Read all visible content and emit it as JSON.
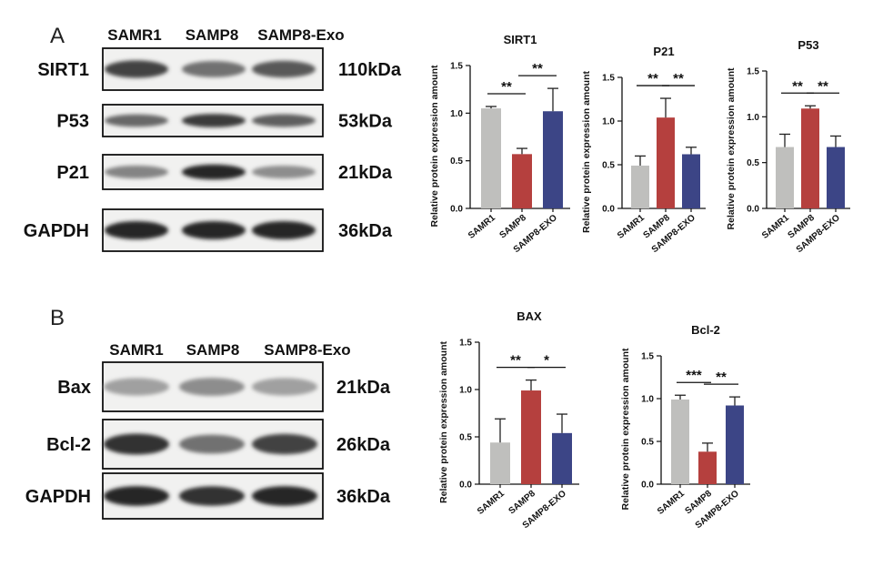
{
  "panels": [
    {
      "letter": "A",
      "blot": {
        "lanes": [
          "SAMR1",
          "SAMP8",
          "SAMP8-Exo"
        ],
        "rows": [
          {
            "label": "SIRT1",
            "kda": "110kDa",
            "intensity": [
              0.8,
              0.55,
              0.68
            ]
          },
          {
            "label": "P53",
            "kda": "53kDa",
            "intensity": [
              0.6,
              0.85,
              0.65
            ]
          },
          {
            "label": "P21",
            "kda": "21kDa",
            "intensity": [
              0.45,
              0.95,
              0.4
            ]
          },
          {
            "label": "GAPDH",
            "kda": "36kDa",
            "intensity": [
              0.95,
              0.95,
              0.95
            ]
          }
        ]
      }
    },
    {
      "letter": "B",
      "blot": {
        "lanes": [
          "SAMR1",
          "SAMP8",
          "SAMP8-Exo"
        ],
        "rows": [
          {
            "label": "Bax",
            "kda": "21kDa",
            "intensity": [
              0.3,
              0.4,
              0.3
            ]
          },
          {
            "label": "Bcl-2",
            "kda": "26kDa",
            "intensity": [
              0.9,
              0.55,
              0.8
            ]
          },
          {
            "label": "GAPDH",
            "kda": "36kDa",
            "intensity": [
              0.95,
              0.9,
              0.95
            ]
          }
        ]
      }
    }
  ],
  "colors": {
    "samr1": "#bfbfbd",
    "samp8": "#b5403e",
    "samp8_exo": "#3c4586"
  },
  "chart_data": [
    {
      "type": "bar",
      "title": "SIRT1",
      "categories": [
        "SAMR1",
        "SAMP8",
        "SAMP8-EXO"
      ],
      "values": [
        1.05,
        0.57,
        1.02
      ],
      "errors": [
        0.02,
        0.06,
        0.24
      ],
      "ylabel": "Relative protein expression amount",
      "ylim": [
        0,
        1.5
      ],
      "yticks": [
        "0.0",
        "0.5",
        "1.0",
        "1.5"
      ],
      "significance": [
        {
          "from": 0,
          "to": 1,
          "label": "**"
        },
        {
          "from": 1,
          "to": 2,
          "label": "**"
        }
      ]
    },
    {
      "type": "bar",
      "title": "P21",
      "categories": [
        "SAMR1",
        "SAMP8",
        "SAMP8-EXO"
      ],
      "values": [
        0.49,
        1.04,
        0.62
      ],
      "errors": [
        0.11,
        0.22,
        0.08
      ],
      "ylabel": "Relative protein expression amount",
      "ylim": [
        0,
        1.5
      ],
      "yticks": [
        "0.0",
        "0.5",
        "1.0",
        "1.5"
      ],
      "significance": [
        {
          "from": 0,
          "to": 1,
          "label": "**"
        },
        {
          "from": 1,
          "to": 2,
          "label": "**"
        }
      ]
    },
    {
      "type": "bar",
      "title": "P53",
      "categories": [
        "SAMR1",
        "SAMP8",
        "SAMP8-EXO"
      ],
      "values": [
        0.67,
        1.09,
        0.67
      ],
      "errors": [
        0.14,
        0.03,
        0.12
      ],
      "ylabel": "Relative protein expression amount",
      "ylim": [
        0,
        1.5
      ],
      "yticks": [
        "0.0",
        "0.5",
        "1.0",
        "1.5"
      ],
      "significance": [
        {
          "from": 0,
          "to": 1,
          "label": "**"
        },
        {
          "from": 1,
          "to": 2,
          "label": "**"
        }
      ]
    },
    {
      "type": "bar",
      "title": "BAX",
      "categories": [
        "SAMR1",
        "SAMP8",
        "SAMP8-EXO"
      ],
      "values": [
        0.44,
        0.99,
        0.54
      ],
      "errors": [
        0.25,
        0.11,
        0.2
      ],
      "ylabel": "Relative protein expression amount",
      "ylim": [
        0,
        1.5
      ],
      "yticks": [
        "0.0",
        "0.5",
        "1.0",
        "1.5"
      ],
      "significance": [
        {
          "from": 0,
          "to": 1,
          "label": "**"
        },
        {
          "from": 1,
          "to": 2,
          "label": "*"
        }
      ]
    },
    {
      "type": "bar",
      "title": "Bcl-2",
      "categories": [
        "SAMR1",
        "SAMP8",
        "SAMP8-EXO"
      ],
      "values": [
        0.99,
        0.38,
        0.92
      ],
      "errors": [
        0.05,
        0.1,
        0.1
      ],
      "ylabel": "Relative protein expression amount",
      "ylim": [
        0,
        1.5
      ],
      "yticks": [
        "0.0",
        "0.5",
        "1.0",
        "1.5"
      ],
      "significance": [
        {
          "from": 0,
          "to": 1,
          "label": "***"
        },
        {
          "from": 1,
          "to": 2,
          "label": "**"
        }
      ]
    }
  ]
}
